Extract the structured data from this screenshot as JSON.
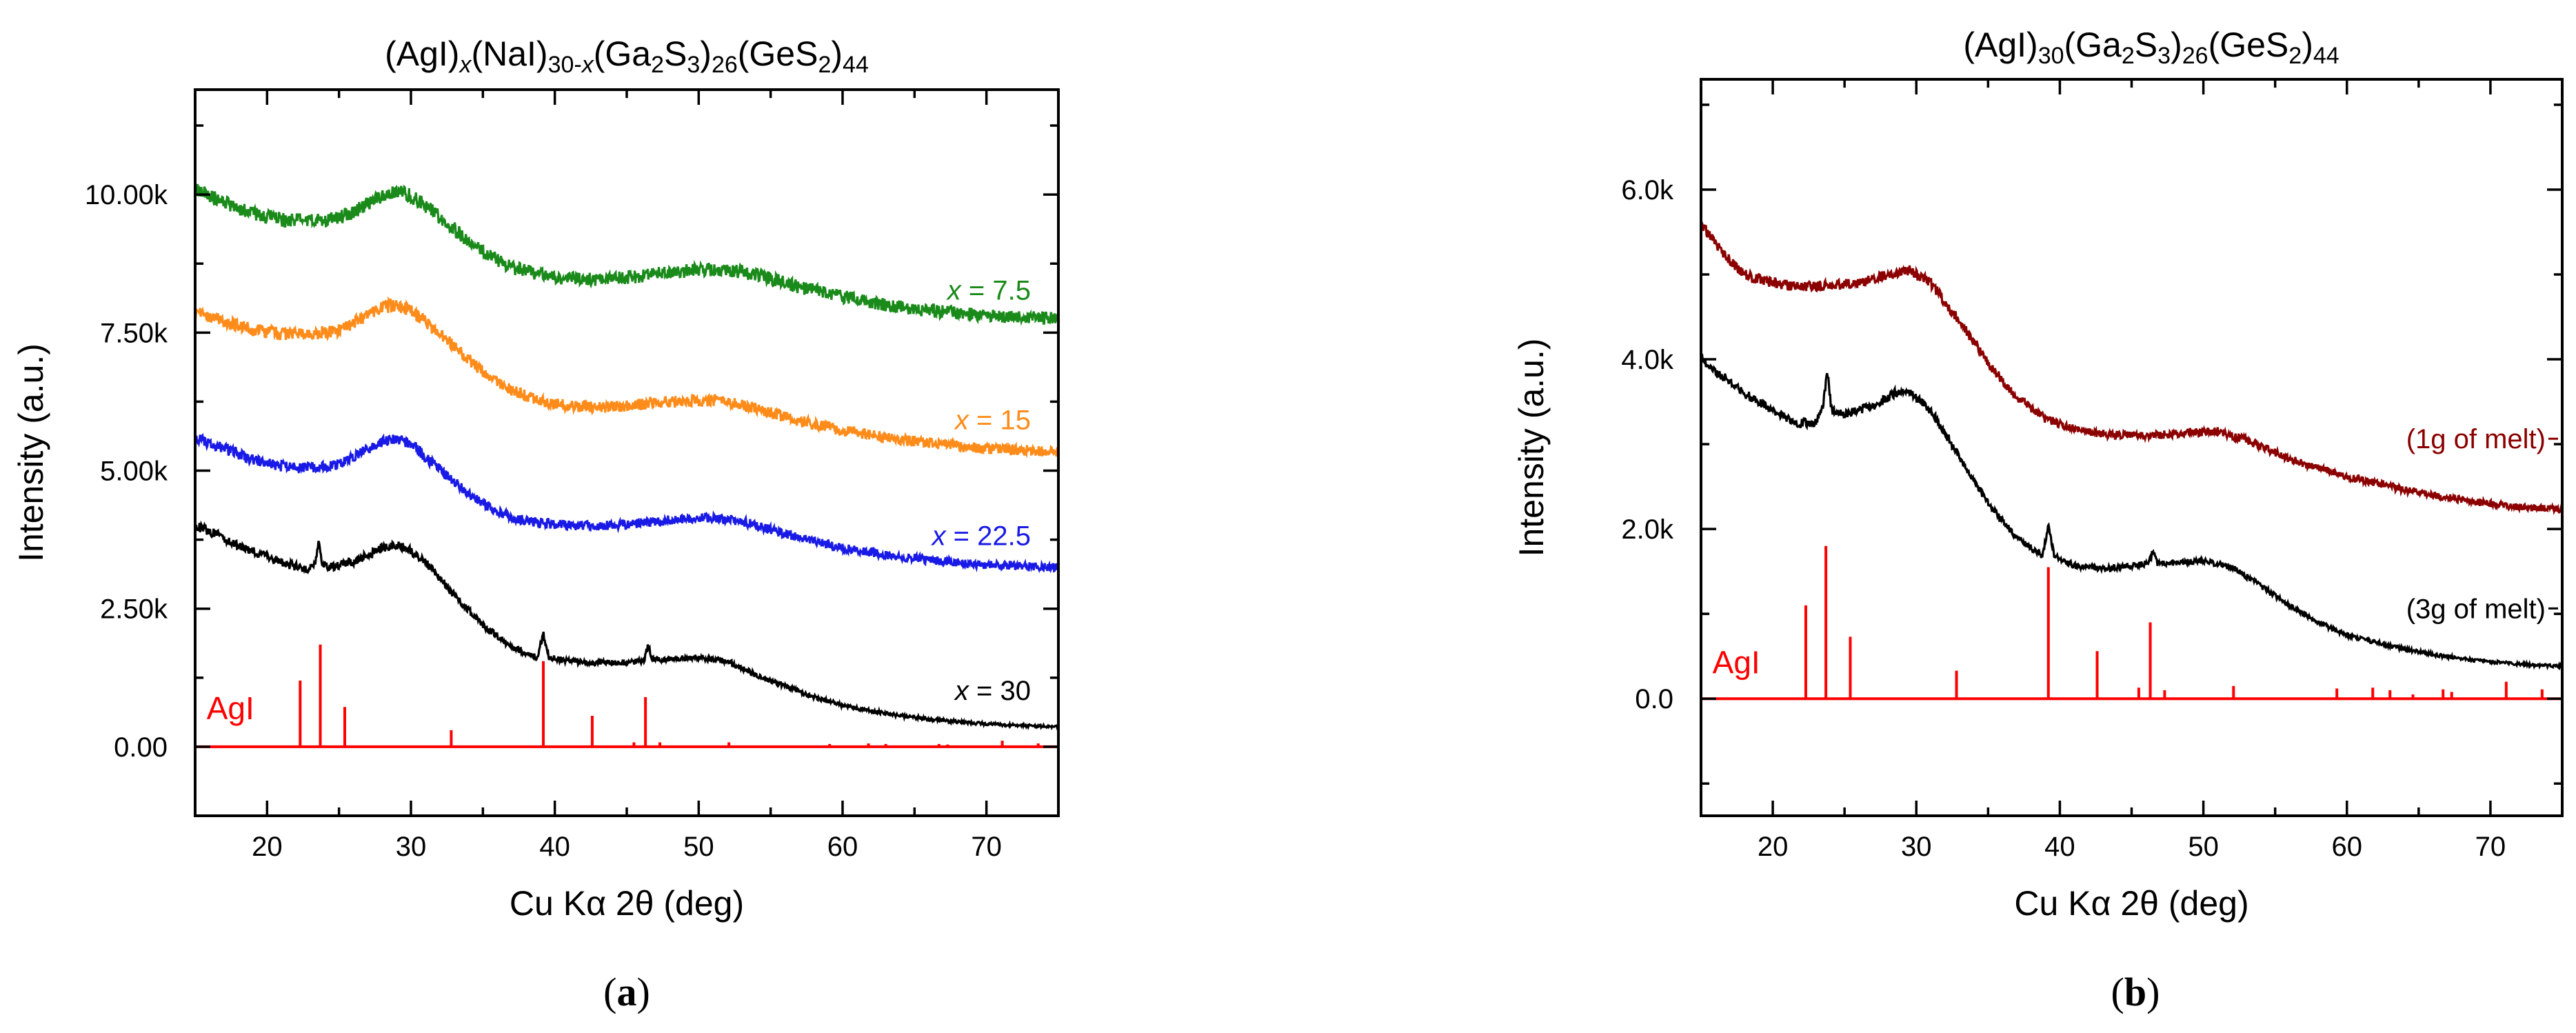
{
  "chart_data": [
    {
      "type": "line",
      "panel_label": "a",
      "title": {
        "parts": [
          "(AgI)",
          "x",
          "(NaI)",
          "30-x",
          "(Ga",
          "2",
          "S",
          "3",
          ")",
          "26",
          "(GeS",
          "2",
          ")",
          "44"
        ]
      },
      "xlabel": "Cu Kα 2θ (deg)",
      "ylabel": "Intensity (a.u.)",
      "xlim": [
        15,
        75
      ],
      "ylim": [
        -1250,
        11900
      ],
      "xticks": [
        20,
        30,
        40,
        50,
        60,
        70
      ],
      "yticks": [
        0,
        2500,
        5000,
        7500,
        10000
      ],
      "ytick_labels": [
        "0.00",
        "2.50k",
        "5.00k",
        "7.50k",
        "10.00k"
      ],
      "series": [
        {
          "name": "x = 7.5",
          "color": "#1a8a1a",
          "points": [
            [
              15,
              10100
            ],
            [
              17,
              9850
            ],
            [
              19,
              9650
            ],
            [
              21,
              9550
            ],
            [
              23,
              9520
            ],
            [
              25,
              9580
            ],
            [
              26.5,
              9750
            ],
            [
              28,
              9980
            ],
            [
              29,
              10050
            ],
            [
              30,
              9980
            ],
            [
              31,
              9800
            ],
            [
              33,
              9380
            ],
            [
              35,
              8950
            ],
            [
              37,
              8680
            ],
            [
              39,
              8550
            ],
            [
              41,
              8480
            ],
            [
              43,
              8470
            ],
            [
              45,
              8500
            ],
            [
              47,
              8560
            ],
            [
              49,
              8620
            ],
            [
              51,
              8650
            ],
            [
              53,
              8600
            ],
            [
              55,
              8480
            ],
            [
              57,
              8320
            ],
            [
              60,
              8150
            ],
            [
              63,
              8000
            ],
            [
              66,
              7900
            ],
            [
              69,
              7830
            ],
            [
              72,
              7780
            ],
            [
              75,
              7760
            ]
          ],
          "label": {
            "prefix": "x",
            "suffix": " = 7.5",
            "x": 70.5,
            "y": 8100
          }
        },
        {
          "name": "x = 15",
          "color": "#ff8c1a",
          "points": [
            [
              15,
              7900
            ],
            [
              17,
              7700
            ],
            [
              19,
              7550
            ],
            [
              21,
              7480
            ],
            [
              23,
              7470
            ],
            [
              25,
              7550
            ],
            [
              26.5,
              7750
            ],
            [
              28,
              7960
            ],
            [
              29,
              8000
            ],
            [
              30,
              7900
            ],
            [
              31,
              7700
            ],
            [
              33,
              7250
            ],
            [
              35,
              6800
            ],
            [
              37,
              6450
            ],
            [
              39,
              6250
            ],
            [
              41,
              6170
            ],
            [
              43,
              6150
            ],
            [
              45,
              6170
            ],
            [
              47,
              6220
            ],
            [
              49,
              6260
            ],
            [
              51,
              6270
            ],
            [
              53,
              6200
            ],
            [
              55,
              6050
            ],
            [
              57,
              5900
            ],
            [
              60,
              5730
            ],
            [
              63,
              5600
            ],
            [
              66,
              5500
            ],
            [
              69,
              5420
            ],
            [
              72,
              5370
            ],
            [
              75,
              5340
            ]
          ],
          "label": {
            "prefix": "x",
            "suffix": " = 15",
            "x": 71,
            "y": 5750
          }
        },
        {
          "name": "x = 22.5",
          "color": "#1a1ae6",
          "points": [
            [
              15,
              5600
            ],
            [
              17,
              5400
            ],
            [
              19,
              5200
            ],
            [
              21,
              5080
            ],
            [
              23,
              5050
            ],
            [
              25,
              5120
            ],
            [
              26.5,
              5320
            ],
            [
              28,
              5530
            ],
            [
              29,
              5580
            ],
            [
              30,
              5480
            ],
            [
              31,
              5250
            ],
            [
              33,
              4800
            ],
            [
              35,
              4400
            ],
            [
              37,
              4150
            ],
            [
              39,
              4050
            ],
            [
              41,
              4010
            ],
            [
              43,
              4000
            ],
            [
              45,
              4030
            ],
            [
              47,
              4080
            ],
            [
              49,
              4130
            ],
            [
              51,
              4150
            ],
            [
              53,
              4080
            ],
            [
              55,
              3930
            ],
            [
              57,
              3780
            ],
            [
              60,
              3600
            ],
            [
              63,
              3480
            ],
            [
              66,
              3380
            ],
            [
              69,
              3310
            ],
            [
              72,
              3270
            ],
            [
              75,
              3250
            ]
          ],
          "label": {
            "prefix": "x",
            "suffix": " = 22.5",
            "x": 69.5,
            "y": 3650
          }
        },
        {
          "name": "x = 30",
          "color": "#000000",
          "points": [
            [
              15,
              4000
            ],
            [
              16.5,
              3850
            ],
            [
              18,
              3650
            ],
            [
              20,
              3450
            ],
            [
              21.5,
              3300
            ],
            [
              22.8,
              3200
            ],
            [
              23.3,
              3300
            ],
            [
              23.6,
              3750
            ],
            [
              23.8,
              3350
            ],
            [
              24.3,
              3250
            ],
            [
              26,
              3350
            ],
            [
              28,
              3600
            ],
            [
              29,
              3650
            ],
            [
              30,
              3550
            ],
            [
              31,
              3350
            ],
            [
              33,
              2750
            ],
            [
              35,
              2200
            ],
            [
              37,
              1800
            ],
            [
              38.8,
              1620
            ],
            [
              39.2,
              2050
            ],
            [
              39.6,
              1620
            ],
            [
              41,
              1550
            ],
            [
              43,
              1520
            ],
            [
              45,
              1530
            ],
            [
              46.2,
              1560
            ],
            [
              46.5,
              1850
            ],
            [
              46.8,
              1570
            ],
            [
              48,
              1580
            ],
            [
              50,
              1620
            ],
            [
              52,
              1550
            ],
            [
              54,
              1300
            ],
            [
              56,
              1100
            ],
            [
              58,
              900
            ],
            [
              60,
              750
            ],
            [
              63,
              600
            ],
            [
              66,
              500
            ],
            [
              69,
              430
            ],
            [
              72,
              390
            ],
            [
              75,
              360
            ]
          ],
          "label": {
            "prefix": "x",
            "suffix": " = 30",
            "x": 71,
            "y": 850
          }
        }
      ],
      "reference": {
        "name": "AgI",
        "color": "#ff0000",
        "label": "AgI",
        "peaks": [
          [
            22.3,
            1200
          ],
          [
            23.7,
            1850
          ],
          [
            25.4,
            720
          ],
          [
            32.8,
            300
          ],
          [
            39.2,
            1550
          ],
          [
            42.6,
            560
          ],
          [
            45.5,
            80
          ],
          [
            46.3,
            900
          ],
          [
            47.3,
            80
          ],
          [
            52.1,
            80
          ],
          [
            59.1,
            50
          ],
          [
            61.8,
            60
          ],
          [
            63.0,
            50
          ],
          [
            66.7,
            50
          ],
          [
            67.3,
            40
          ],
          [
            71.1,
            110
          ],
          [
            73.6,
            60
          ]
        ]
      }
    },
    {
      "type": "line",
      "panel_label": "b",
      "title": {
        "parts": [
          "(AgI)",
          "30",
          "(Ga",
          "2",
          "S",
          "3",
          ")",
          "26",
          "(GeS",
          "2",
          ")",
          "44"
        ]
      },
      "xlabel": "Cu Kα 2θ (deg)",
      "ylabel": "Intensity (a.u.)",
      "xlim": [
        15,
        75
      ],
      "ylim": [
        -1380,
        7300
      ],
      "xticks": [
        20,
        30,
        40,
        50,
        60,
        70
      ],
      "yticks": [
        0,
        2000,
        4000,
        6000
      ],
      "ytick_labels": [
        "0.0",
        "2.0k",
        "4.0k",
        "6.0k"
      ],
      "series": [
        {
          "name": "(1g of melt)",
          "color": "#8b0000",
          "points": [
            [
              15,
              5600
            ],
            [
              16.5,
              5250
            ],
            [
              18,
              5000
            ],
            [
              20,
              4900
            ],
            [
              22,
              4850
            ],
            [
              24,
              4870
            ],
            [
              26,
              4900
            ],
            [
              28,
              5000
            ],
            [
              29.5,
              5050
            ],
            [
              31,
              4900
            ],
            [
              33,
              4450
            ],
            [
              35,
              3950
            ],
            [
              37,
              3550
            ],
            [
              39,
              3300
            ],
            [
              41,
              3180
            ],
            [
              43,
              3120
            ],
            [
              45,
              3100
            ],
            [
              47,
              3110
            ],
            [
              49,
              3140
            ],
            [
              51,
              3150
            ],
            [
              53,
              3050
            ],
            [
              55,
              2900
            ],
            [
              57,
              2760
            ],
            [
              60,
              2620
            ],
            [
              63,
              2500
            ],
            [
              66,
              2400
            ],
            [
              69,
              2320
            ],
            [
              72,
              2260
            ],
            [
              75,
              2230
            ]
          ],
          "label": {
            "text": "(1g of melt)",
            "x": 66.5,
            "y": 2950
          }
        },
        {
          "name": "(3g of melt)",
          "color": "#000000",
          "points": [
            [
              15,
              4000
            ],
            [
              16.5,
              3800
            ],
            [
              18,
              3600
            ],
            [
              20,
              3400
            ],
            [
              21.5,
              3250
            ],
            [
              23,
              3250
            ],
            [
              23.5,
              3450
            ],
            [
              23.8,
              3850
            ],
            [
              24.1,
              3400
            ],
            [
              25,
              3350
            ],
            [
              27,
              3450
            ],
            [
              28.5,
              3600
            ],
            [
              29.5,
              3620
            ],
            [
              31,
              3400
            ],
            [
              33,
              2850
            ],
            [
              35,
              2300
            ],
            [
              37,
              1900
            ],
            [
              38.8,
              1680
            ],
            [
              39.2,
              2050
            ],
            [
              39.6,
              1680
            ],
            [
              41,
              1570
            ],
            [
              43,
              1530
            ],
            [
              45,
              1560
            ],
            [
              46.2,
              1600
            ],
            [
              46.5,
              1750
            ],
            [
              46.8,
              1600
            ],
            [
              48,
              1600
            ],
            [
              50,
              1620
            ],
            [
              52,
              1550
            ],
            [
              54,
              1330
            ],
            [
              56,
              1100
            ],
            [
              58,
              900
            ],
            [
              60,
              750
            ],
            [
              63,
              620
            ],
            [
              66,
              520
            ],
            [
              69,
              450
            ],
            [
              72,
              410
            ],
            [
              75,
              380
            ]
          ],
          "label": {
            "text": "(3g of melt)",
            "x": 66.5,
            "y": 950
          }
        }
      ],
      "reference": {
        "name": "AgI",
        "color": "#ff0000",
        "label": "AgI",
        "peaks": [
          [
            22.3,
            1100
          ],
          [
            23.7,
            1800
          ],
          [
            25.4,
            730
          ],
          [
            32.8,
            330
          ],
          [
            39.2,
            1550
          ],
          [
            42.6,
            560
          ],
          [
            45.5,
            130
          ],
          [
            46.3,
            900
          ],
          [
            47.3,
            100
          ],
          [
            52.1,
            150
          ],
          [
            59.3,
            120
          ],
          [
            61.8,
            130
          ],
          [
            63.0,
            100
          ],
          [
            64.6,
            50
          ],
          [
            66.7,
            110
          ],
          [
            67.3,
            80
          ],
          [
            71.1,
            200
          ],
          [
            73.6,
            110
          ]
        ]
      }
    }
  ]
}
